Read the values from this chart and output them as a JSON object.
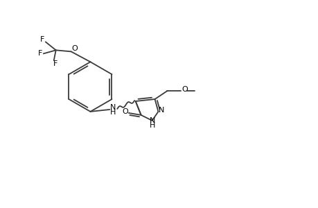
{
  "bg_color": "#ffffff",
  "line_color": "#3a3a3a",
  "figsize": [
    4.6,
    3.0
  ],
  "dpi": 100,
  "xlim": [
    0,
    46
  ],
  "ylim": [
    0,
    30
  ]
}
